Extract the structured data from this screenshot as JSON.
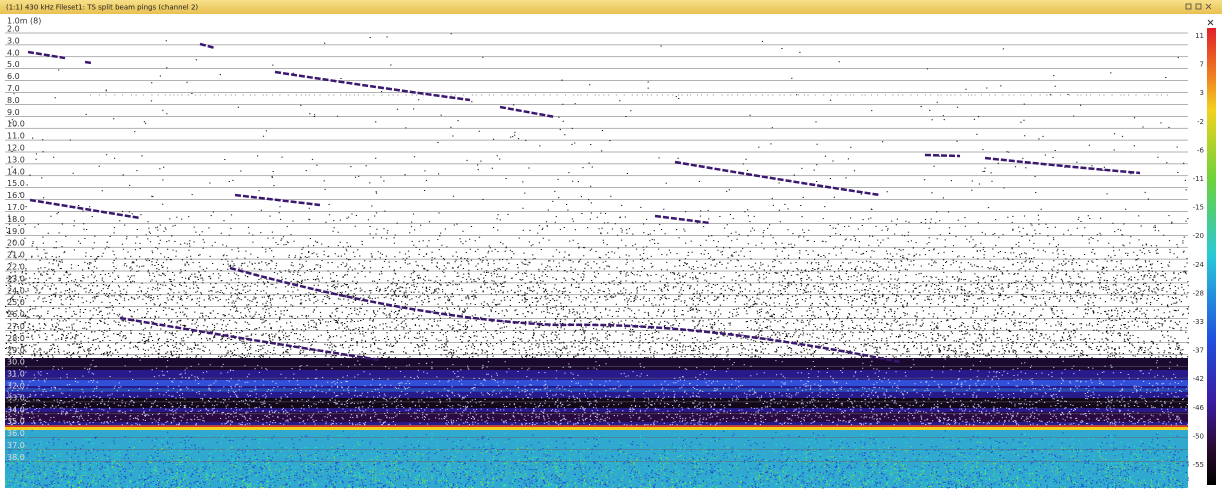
{
  "window": {
    "title": "(1:1) 430 kHz Fileset1: TS split beam pings (channel 2)"
  },
  "depth_axis": {
    "header": "1.0m (8)",
    "labels": [
      "2.0",
      "3.0",
      "4.0",
      "5.0",
      "6.0",
      "7.0",
      "8.0",
      "9.0",
      "10.0",
      "11.0",
      "12.0",
      "13.0",
      "14.0",
      "15.0",
      "16.0",
      "17.0",
      "18.0",
      "19.0",
      "20.0",
      "21.0",
      "22.0",
      "23.0",
      "24.0",
      "25.0",
      "26.0",
      "27.0",
      "28.0",
      "29.0",
      "30.0",
      "31.0",
      "32.0",
      "33.0",
      "34.0",
      "35.0",
      "36.0",
      "37.0",
      "38.0"
    ]
  },
  "color_scale": {
    "labels": [
      "11",
      "7",
      "3",
      "-2",
      "-6",
      "-11",
      "-15",
      "-20",
      "-24",
      "-28",
      "-33",
      "-37",
      "-42",
      "-46",
      "-50",
      "-55"
    ]
  }
}
